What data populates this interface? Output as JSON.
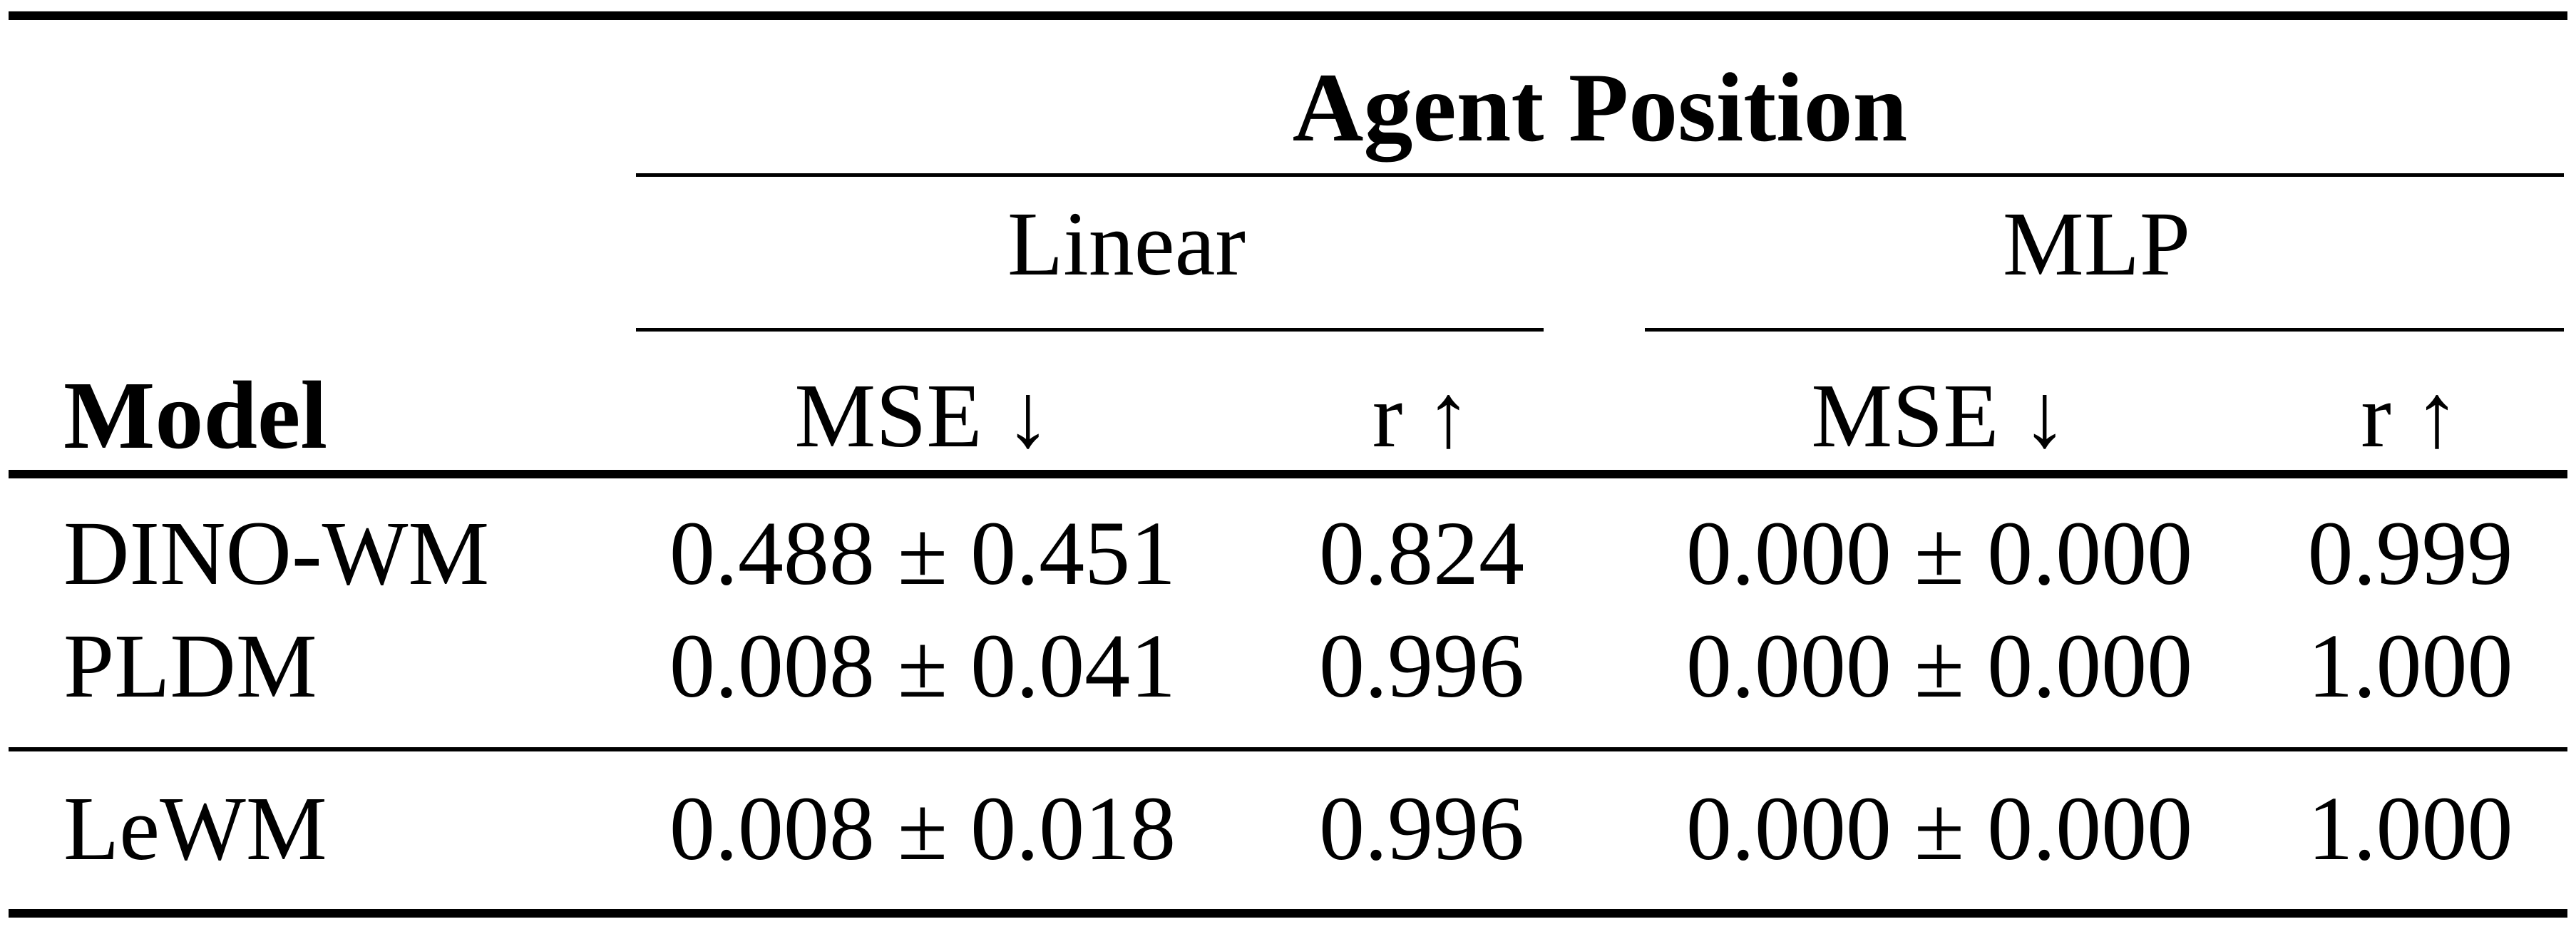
{
  "table": {
    "group_header": "Agent Position",
    "subgroups": {
      "linear": "Linear",
      "mlp": "MLP"
    },
    "headers": {
      "model": "Model",
      "linear_mse": "MSE ↓",
      "linear_r": "r ↑",
      "mlp_mse": "MSE ↓",
      "mlp_r": "r ↑"
    },
    "rows": [
      {
        "model": "DINO-WM",
        "linear_mse": "0.488 ± 0.451",
        "linear_r": "0.824",
        "mlp_mse": "0.000 ± 0.000",
        "mlp_r": "0.999"
      },
      {
        "model": "PLDM",
        "linear_mse": "0.008 ± 0.041",
        "linear_r": "0.996",
        "mlp_mse": "0.000 ± 0.000",
        "mlp_r": "1.000"
      },
      {
        "model": "LeWM",
        "linear_mse": "0.008 ± 0.018",
        "linear_r": "0.996",
        "mlp_mse": "0.000 ± 0.000",
        "mlp_r": "1.000"
      }
    ]
  }
}
